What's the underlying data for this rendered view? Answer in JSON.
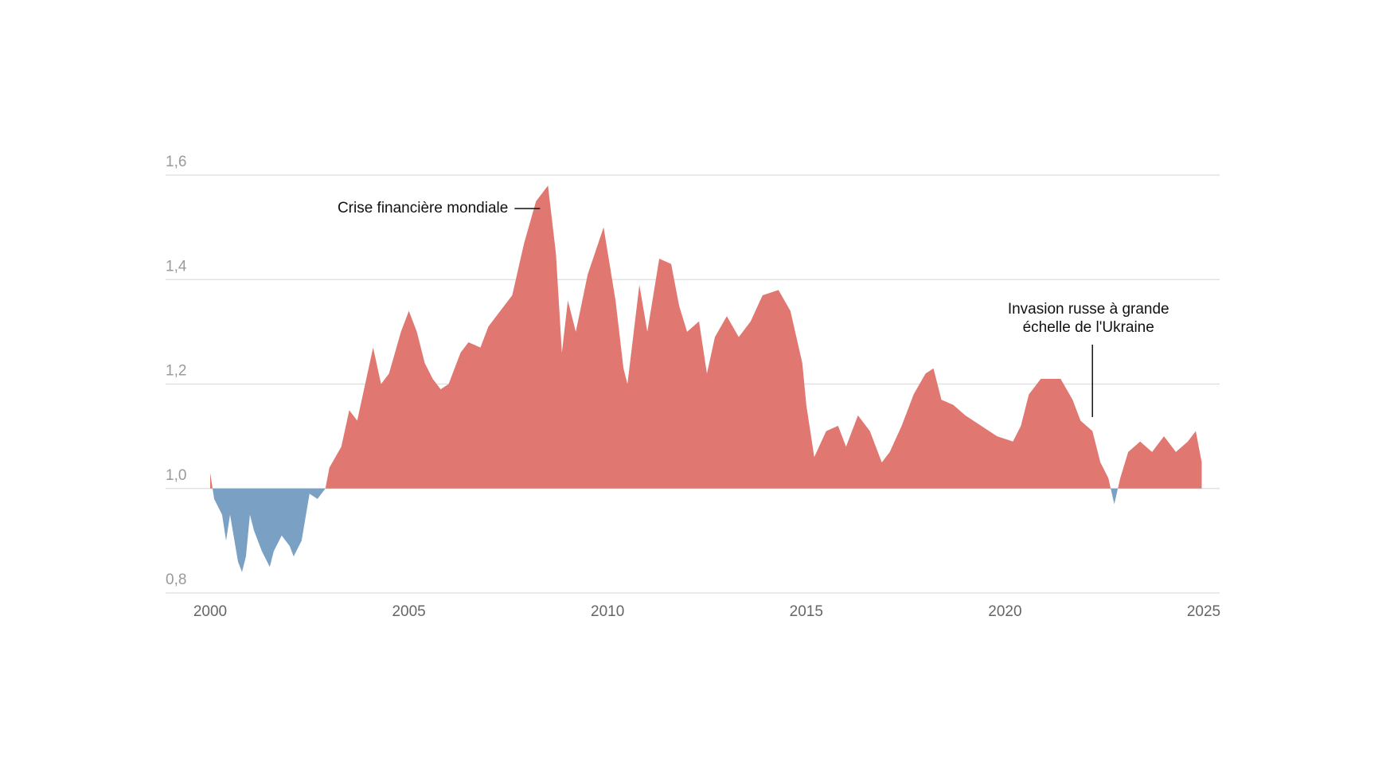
{
  "chart_data": {
    "type": "area",
    "x": [
      2000.0,
      2000.1,
      2000.3,
      2000.4,
      2000.5,
      2000.7,
      2000.8,
      2000.9,
      2001.0,
      2001.1,
      2001.3,
      2001.5,
      2001.6,
      2001.8,
      2002.0,
      2002.1,
      2002.3,
      2002.5,
      2002.7,
      2002.9,
      2003.0,
      2003.3,
      2003.5,
      2003.7,
      2003.9,
      2004.1,
      2004.3,
      2004.5,
      2004.8,
      2005.0,
      2005.2,
      2005.4,
      2005.6,
      2005.8,
      2006.0,
      2006.3,
      2006.5,
      2006.8,
      2007.0,
      2007.3,
      2007.6,
      2007.9,
      2008.2,
      2008.5,
      2008.7,
      2008.85,
      2009.0,
      2009.2,
      2009.5,
      2009.9,
      2010.2,
      2010.4,
      2010.5,
      2010.8,
      2011.0,
      2011.3,
      2011.6,
      2011.8,
      2012.0,
      2012.3,
      2012.5,
      2012.7,
      2013.0,
      2013.3,
      2013.6,
      2013.9,
      2014.3,
      2014.6,
      2014.9,
      2015.0,
      2015.2,
      2015.5,
      2015.8,
      2016.0,
      2016.3,
      2016.6,
      2016.9,
      2017.1,
      2017.4,
      2017.7,
      2018.0,
      2018.2,
      2018.4,
      2018.7,
      2019.0,
      2019.4,
      2019.8,
      2020.2,
      2020.4,
      2020.6,
      2020.9,
      2021.1,
      2021.4,
      2021.7,
      2021.9,
      2022.2,
      2022.4,
      2022.6,
      2022.75,
      2022.9,
      2023.1,
      2023.4,
      2023.7,
      2024.0,
      2024.3,
      2024.6,
      2024.8,
      2024.95
    ],
    "values": [
      1.03,
      0.98,
      0.95,
      0.9,
      0.95,
      0.86,
      0.84,
      0.87,
      0.95,
      0.92,
      0.88,
      0.85,
      0.88,
      0.91,
      0.89,
      0.87,
      0.9,
      0.99,
      0.98,
      1.0,
      1.04,
      1.08,
      1.15,
      1.13,
      1.2,
      1.27,
      1.2,
      1.22,
      1.3,
      1.34,
      1.3,
      1.24,
      1.21,
      1.19,
      1.2,
      1.26,
      1.28,
      1.27,
      1.31,
      1.34,
      1.37,
      1.47,
      1.55,
      1.58,
      1.45,
      1.26,
      1.36,
      1.3,
      1.41,
      1.5,
      1.36,
      1.23,
      1.2,
      1.39,
      1.3,
      1.44,
      1.43,
      1.35,
      1.3,
      1.32,
      1.22,
      1.29,
      1.33,
      1.29,
      1.32,
      1.37,
      1.38,
      1.34,
      1.24,
      1.16,
      1.06,
      1.11,
      1.12,
      1.08,
      1.14,
      1.11,
      1.05,
      1.07,
      1.12,
      1.18,
      1.22,
      1.23,
      1.17,
      1.16,
      1.14,
      1.12,
      1.1,
      1.09,
      1.12,
      1.18,
      1.21,
      1.21,
      1.21,
      1.17,
      1.13,
      1.11,
      1.05,
      1.02,
      0.97,
      1.02,
      1.07,
      1.09,
      1.07,
      1.1,
      1.07,
      1.09,
      1.11,
      1.05
    ],
    "baseline": 1.0,
    "color_above": "#e07770",
    "color_below": "#7aa0c4",
    "xlim": [
      2000,
      2025
    ],
    "xticks": [
      2000,
      2005,
      2010,
      2015,
      2020,
      2025
    ],
    "ylim": [
      0.8,
      1.6
    ],
    "yticks": [
      {
        "value": 0.8,
        "label": "0,8"
      },
      {
        "value": 1.0,
        "label": "1,0"
      },
      {
        "value": 1.2,
        "label": "1,2"
      },
      {
        "value": 1.4,
        "label": "1,4"
      },
      {
        "value": 1.6,
        "label": "1,6"
      }
    ],
    "grid": true,
    "annotations": [
      {
        "lines": [
          "Crise financière mondiale"
        ],
        "x": 2008.3
      },
      {
        "lines": [
          "Invasion russe à grande",
          "échelle de l'Ukraine"
        ],
        "x": 2022.2
      }
    ]
  }
}
